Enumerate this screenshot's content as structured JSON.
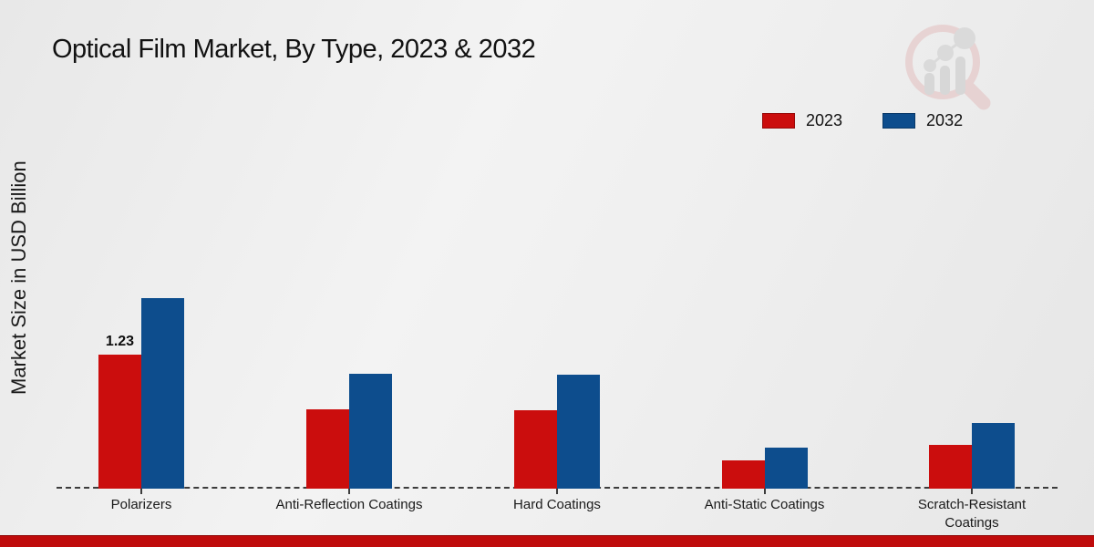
{
  "title": "Optical Film Market, By Type, 2023 & 2032",
  "ylabel": "Market Size in USD Billion",
  "watermark_icon": "magnifier-bar-chart-logo",
  "colors": {
    "series_2023": "#cb0d0d",
    "series_2032": "#0d4d8d",
    "footer_stripe": "#bf0b0b",
    "baseline": "#3c3c3c",
    "title_text": "#121212"
  },
  "legend": {
    "items": [
      {
        "label": "2023",
        "color": "#cb0d0d"
      },
      {
        "label": "2032",
        "color": "#0d4d8d"
      }
    ],
    "position": "top-right"
  },
  "chart_data": {
    "type": "bar",
    "title": "Optical Film Market, By Type, 2023 & 2032",
    "xlabel": "",
    "ylabel": "Market Size in USD Billion",
    "categories": [
      "Polarizers",
      "Anti-Reflection Coatings",
      "Hard Coatings",
      "Anti-Static Coatings",
      "Scratch-Resistant Coatings"
    ],
    "series": [
      {
        "name": "2023",
        "color": "#cb0d0d",
        "values": [
          1.23,
          0.73,
          0.72,
          0.26,
          0.4
        ]
      },
      {
        "name": "2032",
        "color": "#0d4d8d",
        "values": [
          1.75,
          1.06,
          1.05,
          0.38,
          0.6
        ]
      }
    ],
    "bar_labels": [
      {
        "series_index": 0,
        "category_index": 0,
        "text": "1.23"
      }
    ],
    "ylim": [
      0,
      2.0
    ],
    "grid": false,
    "legend_position": "top-right",
    "baseline_style": "dashed",
    "y_axis_ticks_visible": false
  }
}
